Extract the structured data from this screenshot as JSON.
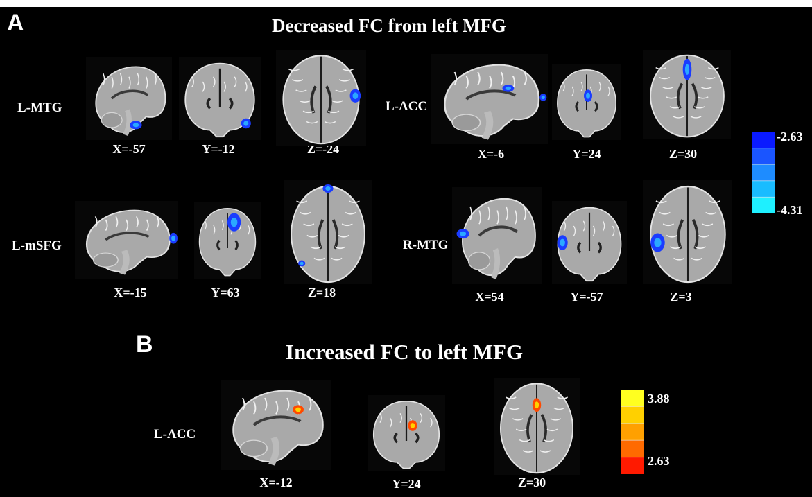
{
  "panel_a": {
    "letter": "A",
    "title": "Decreased FC from left MFG",
    "rows": [
      {
        "label": "L-MTG",
        "coords": [
          "X=-57",
          "Y=-12",
          "Z=-24"
        ]
      },
      {
        "label": "L-ACC",
        "coords": [
          "X=-6",
          "Y=24",
          "Z=30"
        ]
      },
      {
        "label": "L-mSFG",
        "coords": [
          "X=-15",
          "Y=63",
          "Z=18"
        ]
      },
      {
        "label": "R-MTG",
        "coords": [
          "X=54",
          "Y=-57",
          "Z=3"
        ]
      }
    ],
    "colorbar": {
      "max_label": "-2.63",
      "min_label": "-4.31",
      "colors": [
        "#0a1aff",
        "#1a55ff",
        "#1e8cff",
        "#19bcff",
        "#1ef0ff"
      ]
    }
  },
  "panel_b": {
    "letter": "B",
    "title": "Increased FC to left MFG",
    "rows": [
      {
        "label": "L-ACC",
        "coords": [
          "X=-12",
          "Y=24",
          "Z=30"
        ]
      }
    ],
    "colorbar": {
      "max_label": "3.88",
      "min_label": "2.63",
      "colors": [
        "#ffff20",
        "#ffd000",
        "#ffa000",
        "#ff6a00",
        "#ff1a00"
      ]
    }
  }
}
